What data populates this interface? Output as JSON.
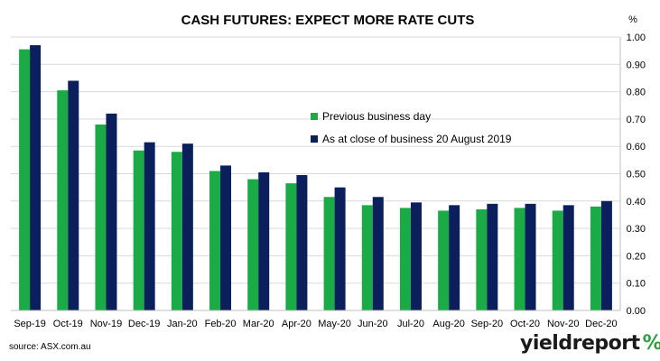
{
  "chart_data": {
    "type": "bar",
    "title": "CASH FUTURES: EXPECT MORE RATE CUTS",
    "ylabel": "%",
    "xlabel": "",
    "ylim": [
      0,
      1.0
    ],
    "ytick_labels": [
      "0.00",
      "0.10",
      "0.20",
      "0.30",
      "0.40",
      "0.50",
      "0.60",
      "0.70",
      "0.80",
      "0.90",
      "1.00"
    ],
    "grid": true,
    "legend": "center-right",
    "categories": [
      "Sep-19",
      "Oct-19",
      "Nov-19",
      "Dec-19",
      "Jan-20",
      "Feb-20",
      "Mar-20",
      "Apr-20",
      "May-20",
      "Jun-20",
      "Jul-20",
      "Aug-20",
      "Sep-20",
      "Oct-20",
      "Nov-20",
      "Dec-20"
    ],
    "series": [
      {
        "name": "Previous business day",
        "color": "#1aab47",
        "values": [
          0.955,
          0.805,
          0.68,
          0.585,
          0.58,
          0.51,
          0.48,
          0.465,
          0.415,
          0.385,
          0.375,
          0.365,
          0.37,
          0.375,
          0.365,
          0.38
        ]
      },
      {
        "name": "As at close of business 20 August 2019",
        "color": "#0b1f5c",
        "values": [
          0.97,
          0.84,
          0.72,
          0.615,
          0.61,
          0.53,
          0.505,
          0.495,
          0.45,
          0.415,
          0.395,
          0.385,
          0.39,
          0.39,
          0.385,
          0.4
        ]
      }
    ]
  },
  "footer": {
    "source": "source: ASX.com.au",
    "logo_word": "yieldreport",
    "logo_symbol": "%"
  }
}
